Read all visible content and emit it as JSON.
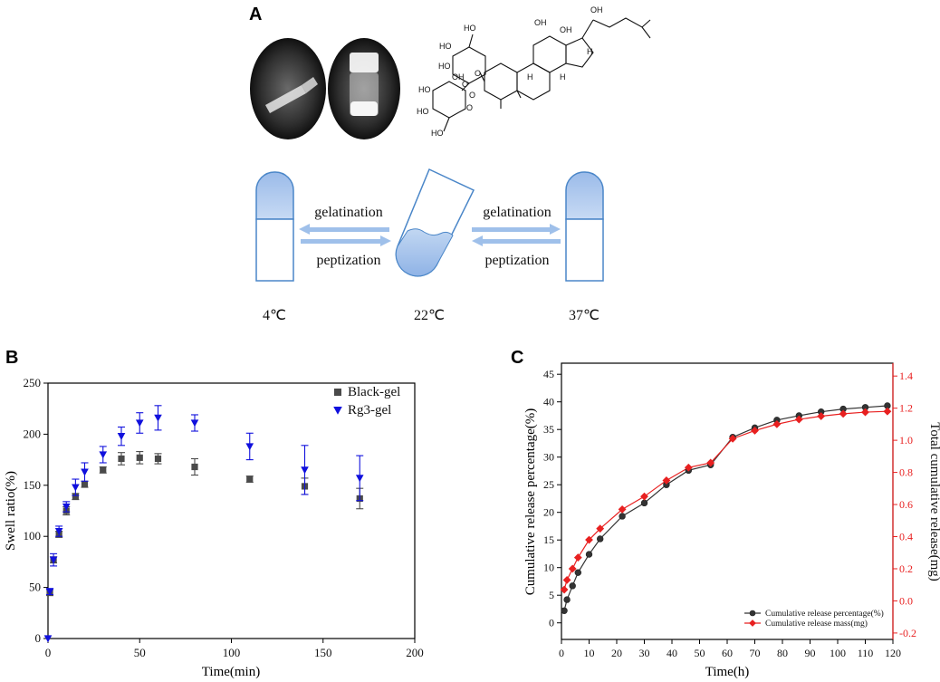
{
  "panel_a": {
    "letter": "A",
    "process": {
      "top_arrow_label": "gelatination",
      "bottom_arrow_label": "peptization"
    },
    "temperatures": [
      "4℃",
      "22℃",
      "37℃"
    ],
    "colors": {
      "gel": "#a9c5ef",
      "outline": "#4a86c8",
      "arrow": "#9fc0ea"
    }
  },
  "chart_data": [
    {
      "panel": "B",
      "type": "scatter",
      "xlabel": "Time(min)",
      "ylabel": "Swell ratio(%)",
      "xlim": [
        0,
        200
      ],
      "ylim": [
        0,
        250
      ],
      "xticks": [
        0,
        50,
        100,
        150,
        200
      ],
      "yticks": [
        0,
        50,
        100,
        150,
        200,
        250
      ],
      "legend_position": "top-right",
      "series": [
        {
          "name": "Black-gel",
          "marker": "square",
          "color": "#4a4a4a",
          "x": [
            1,
            3,
            6,
            10,
            15,
            20,
            30,
            40,
            50,
            60,
            80,
            110,
            140,
            170
          ],
          "y": [
            45,
            77,
            102,
            125,
            139,
            151,
            165,
            176,
            177,
            176,
            168,
            156,
            149,
            137
          ],
          "err": [
            3,
            3,
            3,
            4,
            3,
            3,
            3,
            6,
            6,
            5,
            8,
            3,
            8,
            10
          ]
        },
        {
          "name": "Rg3-gel",
          "marker": "triangle-down",
          "color": "#1010dd",
          "x": [
            1,
            3,
            6,
            10,
            15,
            20,
            30,
            40,
            50,
            60,
            80,
            110,
            140,
            170
          ],
          "y": [
            46,
            77,
            105,
            129,
            148,
            163,
            180,
            198,
            211,
            216,
            211,
            188,
            165,
            157
          ],
          "err": [
            3,
            6,
            5,
            5,
            8,
            9,
            8,
            9,
            10,
            12,
            8,
            13,
            24,
            22
          ]
        }
      ],
      "extra_points": [
        {
          "series": "Rg3-gel",
          "x": 0,
          "y": 0
        }
      ]
    },
    {
      "panel": "C",
      "type": "line",
      "xlabel": "Time(h)",
      "ylabel": "Cumulative release percentage(%)",
      "y2label": "Total cumulative release(mg)",
      "xlim": [
        0,
        120
      ],
      "ylim": [
        -3,
        47
      ],
      "y2lim": [
        -0.24,
        1.48
      ],
      "xticks": [
        0,
        10,
        20,
        30,
        40,
        50,
        60,
        70,
        80,
        90,
        100,
        110,
        120
      ],
      "yticks": [
        0,
        5,
        10,
        15,
        20,
        25,
        30,
        35,
        40,
        45
      ],
      "y2ticks": [
        -0.2,
        0.0,
        0.2,
        0.4,
        0.6,
        0.8,
        1.0,
        1.2,
        1.4
      ],
      "legend_position": "bottom-right",
      "series": [
        {
          "name": "Cumulative release percentage(%)",
          "marker": "circle",
          "color": "#333333",
          "axis": "left",
          "x": [
            1,
            2,
            4,
            6,
            10,
            14,
            22,
            30,
            38,
            46,
            54,
            62,
            70,
            78,
            86,
            94,
            102,
            110,
            118
          ],
          "y": [
            2.2,
            4.2,
            6.7,
            9.1,
            12.4,
            15.2,
            19.3,
            21.7,
            25.0,
            27.6,
            28.6,
            33.6,
            35.3,
            36.7,
            37.5,
            38.2,
            38.7,
            39.0,
            39.3
          ]
        },
        {
          "name": "Cumulative release mass(mg)",
          "marker": "diamond",
          "color": "#e82020",
          "axis": "right",
          "x": [
            1,
            2,
            4,
            6,
            10,
            14,
            22,
            30,
            38,
            46,
            54,
            62,
            70,
            78,
            86,
            94,
            102,
            110,
            118
          ],
          "y": [
            0.07,
            0.13,
            0.2,
            0.27,
            0.38,
            0.45,
            0.57,
            0.65,
            0.75,
            0.83,
            0.86,
            1.01,
            1.06,
            1.1,
            1.13,
            1.15,
            1.165,
            1.175,
            1.18
          ]
        }
      ]
    }
  ]
}
